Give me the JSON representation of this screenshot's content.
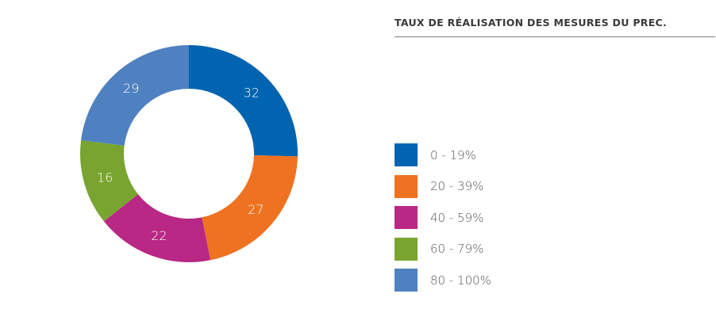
{
  "chart_data": {
    "type": "pie",
    "variant": "donut",
    "title": "TAUX DE RÉALISATION DES MESURES DU PREC.",
    "categories": [
      "0 - 19%",
      "20 - 39%",
      "40 - 59%",
      "60 - 79%",
      "80 - 100%"
    ],
    "values": [
      32,
      27,
      22,
      16,
      29
    ],
    "colors": [
      "#0064b0",
      "#ee7220",
      "#b82884",
      "#79a430",
      "#4f81c1"
    ],
    "start_angle": "top",
    "direction": "clockwise",
    "legend_position": "right"
  }
}
